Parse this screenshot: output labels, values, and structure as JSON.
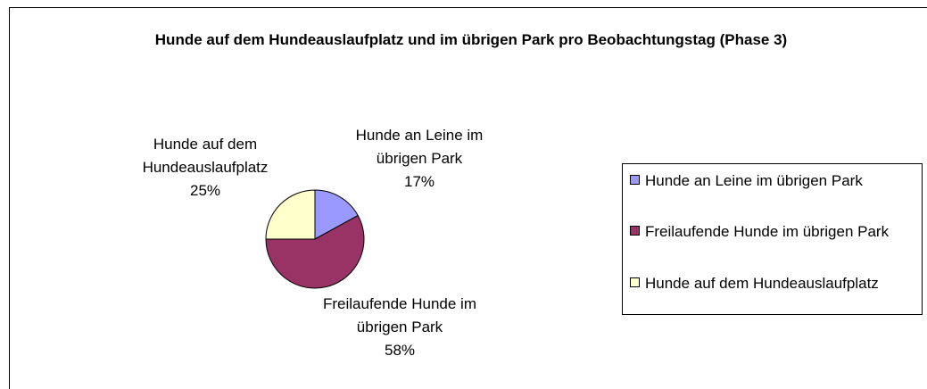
{
  "chart_data": {
    "type": "pie",
    "title": "Hunde auf dem Hundeauslaufplatz und im übrigen Park pro Beobachtungstag (Phase 3)",
    "categories": [
      "Hunde an Leine im übrigen Park",
      "Freilaufende Hunde im übrigen Park",
      "Hunde auf dem Hundeauslaufplatz"
    ],
    "values": [
      17,
      58,
      25
    ],
    "value_labels": [
      "17%",
      "58%",
      "25%"
    ],
    "colors": [
      "#9999ff",
      "#993366",
      "#ffffcc"
    ],
    "legend": "right"
  }
}
